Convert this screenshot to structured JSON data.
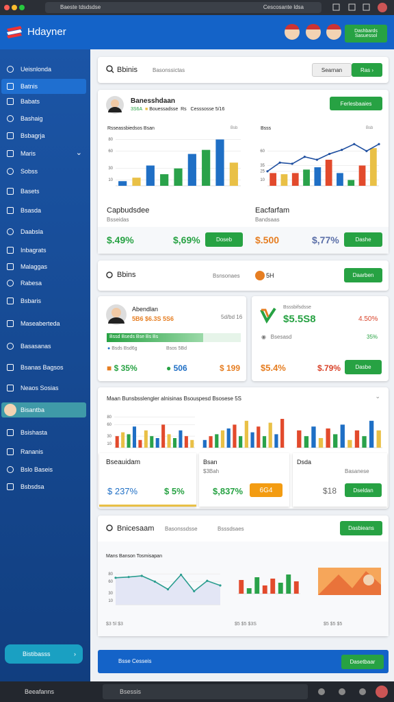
{
  "browser": {
    "tab_title": "Baeste tdsdsdse",
    "address": "Cescosante ldsa"
  },
  "header": {
    "logo": "Hdayner",
    "button_line1": "Dashbards",
    "button_line2": "Sasuessol"
  },
  "sidebar": {
    "items": [
      "Ueisnlonda",
      "Batnis",
      "Babats",
      "Bashaig",
      "Bsbagrja",
      "Maris",
      "Sobss",
      "Basets",
      "Bsasda",
      "Daabsla",
      "Inbagrats",
      "Malaggas",
      "Rabesa",
      "Bsbaris",
      "Maseaberteda",
      "Basasanas",
      "Bsanas Bagsos",
      "Neaos Sosias",
      "Bisantba",
      "Bsishasta",
      "Rananis",
      "Bslo Baseis",
      "Bsbsdsa"
    ],
    "bottom_button": "Bistibasss"
  },
  "search": {
    "label": "Bbinis",
    "hint": "Basonssictas",
    "button_secondary": "Searnan",
    "button_primary": "Ras"
  },
  "profile": {
    "name": "Banesshdaan",
    "stat": "3S6A",
    "meta": "Bouessadsse",
    "meta2": "Rs",
    "meta3": "Cesssosse 5/16",
    "button": "Ferlesbaaies"
  },
  "overview": {
    "left_chart": {
      "type": "bar",
      "title": "Rsseassbiedsos Bsan",
      "badge": "Bsb",
      "ylim": [
        0,
        90
      ],
      "yticks": [
        10,
        30,
        60,
        80
      ],
      "values": [
        8,
        14,
        35,
        20,
        30,
        55,
        62,
        80,
        40
      ],
      "colors": [
        "#1f6fc5",
        "#e9c046",
        "#1f6fc5",
        "#2aa24a",
        "#2aa24a",
        "#1f6fc5",
        "#2aa24a",
        "#1f6fc5",
        "#e9c046"
      ]
    },
    "right_chart": {
      "type": "combo",
      "title": "Bsss",
      "badge": "Bsb",
      "ylim": [
        0,
        90
      ],
      "yticks": [
        10,
        25,
        35,
        60
      ],
      "values": [
        22,
        20,
        22,
        28,
        32,
        45,
        22,
        10,
        35,
        65
      ],
      "line": [
        25,
        40,
        38,
        50,
        45,
        55,
        62,
        72,
        60,
        72
      ],
      "colors": [
        "#e24a2c",
        "#e9c046",
        "#e24a2c",
        "#2aa24a",
        "#1f6fc5",
        "#e24a2c",
        "#1f6fc5",
        "#2aa24a",
        "#e24a2c",
        "#e9c046"
      ]
    },
    "left_caption": "Capbudsdee",
    "left_sub": "Bsseidas",
    "right_caption": "Eacfarfam",
    "right_sub": "Bandsaas",
    "kpi1": "$.49%",
    "kpi2": "$,69%",
    "button1": "Doseb",
    "kpi3": "$.500",
    "kpi4": "$,77%",
    "button2": "Dashe"
  },
  "section2": {
    "title": "Bbins",
    "hint": "Bsnsonaes",
    "badge": "5H",
    "button": "Daarben"
  },
  "card_left": {
    "name": "Abendlan",
    "stats": "5B6 $6.3S 5S6",
    "date": "5d/bd 16",
    "progress_label": "Bssd Bseds Bse Bs Bs",
    "progress": 72,
    "detail": "Bsds  Bsd6g",
    "detail2": "Bsos 5Bd",
    "kpi1": "$ 35%",
    "kpi2": "506",
    "kpi3": "$ 199"
  },
  "card_right": {
    "title": "Bsssbifsdsse",
    "amount": "$5.5S8",
    "change": "4.50%",
    "detail": "Bsesasd",
    "detail_pct": "35%",
    "kpi1": "$5.4%",
    "kpi2": "$.79%",
    "button": "Dasbe"
  },
  "section3": {
    "title": "Maan Bunsbsslengler alnisinas Bsouspesd Bsosese 5S",
    "charts": [
      {
        "type": "bar",
        "ylim": [
          0,
          100
        ],
        "yticks": [
          10,
          30,
          60,
          80
        ],
        "values": [
          30,
          40,
          35,
          55,
          20,
          45,
          30,
          25,
          60,
          35,
          25,
          45,
          30,
          20
        ],
        "colors": [
          "#e24a2c",
          "#e9c046",
          "#2aa24a",
          "#1f6fc5"
        ]
      },
      {
        "type": "bar",
        "ylim": [
          0,
          100
        ],
        "values": [
          20,
          30,
          35,
          45,
          50,
          60,
          30,
          70,
          40,
          55,
          30,
          65,
          35,
          75
        ],
        "colors": [
          "#1f6fc5",
          "#e24a2c",
          "#2aa24a",
          "#e9c046"
        ]
      },
      {
        "type": "bar",
        "ylim": [
          0,
          100
        ],
        "values": [
          45,
          30,
          55,
          25,
          50,
          35,
          60,
          20,
          45,
          30,
          70,
          45
        ],
        "colors": [
          "#e24a2c",
          "#2aa24a",
          "#1f6fc5",
          "#e9c046"
        ]
      }
    ],
    "card1_title": "Bseauidam",
    "card1_kpi1": "$ 237%",
    "card1_kpi2": "$ 5%",
    "card2_title": "Bsan",
    "card2_sub": "$3Bah",
    "card2_kpi1": "$,837%",
    "card2_kpi2": "6G4",
    "card3_title": "Dsda",
    "card3_sub": "Basanese",
    "card3_kpi": "$18",
    "card3_button": "Dseldan"
  },
  "section4": {
    "title": "Bnicesaam",
    "hint1": "Basonssdsse",
    "hint2": "Bsssdsaes",
    "button": "Dasbieans",
    "subtitle": "Mans Banson Tosmisapan",
    "line_chart": {
      "type": "line",
      "ylim": [
        0,
        100
      ],
      "yticks": [
        10,
        30,
        60,
        80
      ],
      "line": [
        70,
        72,
        75,
        60,
        40,
        78,
        35,
        62,
        50
      ],
      "color": "#2a9d8f"
    },
    "bar_chart": {
      "type": "bar",
      "ylim": [
        0,
        100
      ],
      "values": [
        50,
        20,
        60,
        30,
        55,
        40,
        70,
        45
      ],
      "colors": [
        "#e24a2c",
        "#2aa24a",
        "#2aa24a",
        "#e24a2c"
      ]
    },
    "legend1": "$3 5l $3",
    "legend2": "$5 $5 $3S",
    "legend3": "$5 $5 $5"
  },
  "banner": {
    "text": "Bsse Cesseis",
    "button": "Dasetbaar"
  },
  "taskbar": {
    "app": "Beeafanns",
    "search": "Bsessis"
  }
}
